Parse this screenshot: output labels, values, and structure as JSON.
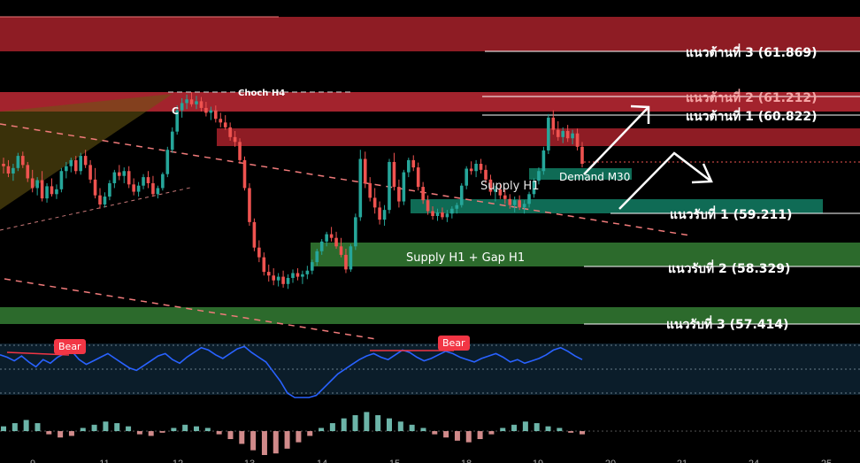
{
  "colors": {
    "background": "#000000",
    "resistance_zone": "#8e1c24",
    "supply_h1_zone": "#c23a3e",
    "demand_zone": "#0f6b55",
    "support_zone": "#2c6a2c",
    "bull_candle": "#26a69a",
    "bear_candle": "#ef5350",
    "rsi_line": "#2962ff",
    "bear_badge": "#f23645",
    "trend_line": "#f07a7a"
  },
  "annotations": {
    "choch": "Choch H4",
    "c_mark": "C",
    "supply_h1": "Supply H1",
    "demand_m30": "Demand M30",
    "supply_gap": "Supply H1 + Gap H1",
    "bear_1": "Bear",
    "bear_2": "Bear"
  },
  "chart_data": {
    "type": "candlestick",
    "levels": [
      {
        "name": "แนวต้านที่ 3",
        "value": 61.869,
        "label": "แนวต้านที่ 3 (61.869)"
      },
      {
        "name": "แนวต้านที่ 2",
        "value": 61.212,
        "label": "แนวต้านที่ 2 (61.212)"
      },
      {
        "name": "แนวต้านที่ 1",
        "value": 60.822,
        "label": "แนวต้านที่ 1 (60.822)"
      },
      {
        "name": "แนวรับที่ 1",
        "value": 59.211,
        "label": "แนวรับที่ 1 (59.211)"
      },
      {
        "name": "แนวรับที่ 2",
        "value": 58.329,
        "label": "แนวรับที่ 2 (58.329)"
      },
      {
        "name": "แนวรับที่ 3",
        "value": 57.414,
        "label": "แนวรับที่ 3 (57.414)"
      }
    ],
    "x_ticks": [
      "9",
      "11",
      "12",
      "13",
      "14",
      "15",
      "18",
      "19",
      "20",
      "21",
      "24",
      "25"
    ],
    "candles": [
      [
        60.02,
        60.12,
        59.86,
        59.98
      ],
      [
        59.98,
        60.08,
        59.8,
        59.86
      ],
      [
        59.86,
        60.02,
        59.74,
        59.95
      ],
      [
        59.95,
        60.2,
        59.9,
        60.15
      ],
      [
        60.15,
        60.22,
        59.95,
        60.0
      ],
      [
        60.0,
        60.05,
        59.72,
        59.78
      ],
      [
        59.78,
        59.92,
        59.55,
        59.62
      ],
      [
        59.62,
        59.8,
        59.5,
        59.75
      ],
      [
        59.75,
        59.9,
        59.4,
        59.45
      ],
      [
        59.45,
        59.7,
        59.38,
        59.65
      ],
      [
        59.65,
        59.78,
        59.48,
        59.52
      ],
      [
        59.52,
        59.68,
        59.44,
        59.6
      ],
      [
        59.6,
        59.95,
        59.55,
        59.9
      ],
      [
        59.9,
        60.05,
        59.78,
        59.98
      ],
      [
        59.98,
        60.12,
        59.88,
        60.08
      ],
      [
        60.08,
        60.15,
        59.85,
        59.9
      ],
      [
        59.9,
        60.2,
        59.84,
        60.15
      ],
      [
        60.15,
        60.25,
        59.95,
        60.0
      ],
      [
        60.0,
        60.08,
        59.7,
        59.76
      ],
      [
        59.76,
        59.95,
        59.45,
        59.5
      ],
      [
        59.5,
        59.62,
        59.28,
        59.35
      ],
      [
        59.35,
        59.55,
        59.3,
        59.48
      ],
      [
        59.48,
        59.75,
        59.42,
        59.7
      ],
      [
        59.7,
        59.92,
        59.62,
        59.88
      ],
      [
        59.88,
        60.0,
        59.75,
        59.82
      ],
      [
        59.82,
        59.96,
        59.7,
        59.9
      ],
      [
        59.9,
        59.98,
        59.62,
        59.68
      ],
      [
        59.68,
        59.78,
        59.5,
        59.56
      ],
      [
        59.56,
        59.72,
        59.48,
        59.66
      ],
      [
        59.66,
        59.85,
        59.6,
        59.8
      ],
      [
        59.8,
        59.9,
        59.62,
        59.7
      ],
      [
        59.7,
        59.82,
        59.48,
        59.52
      ],
      [
        59.52,
        59.66,
        59.45,
        59.62
      ],
      [
        59.62,
        59.88,
        59.58,
        59.85
      ],
      [
        59.85,
        60.3,
        59.8,
        60.25
      ],
      [
        60.25,
        60.62,
        60.2,
        60.55
      ],
      [
        60.55,
        60.98,
        60.5,
        60.9
      ],
      [
        60.9,
        61.1,
        60.78,
        61.02
      ],
      [
        61.02,
        61.16,
        60.92,
        61.08
      ],
      [
        61.08,
        61.2,
        60.96,
        61.0
      ],
      [
        61.0,
        61.14,
        60.92,
        61.05
      ],
      [
        61.05,
        61.12,
        60.88,
        60.94
      ],
      [
        60.94,
        61.04,
        60.8,
        60.86
      ],
      [
        60.86,
        60.96,
        60.74,
        60.9
      ],
      [
        60.9,
        60.98,
        60.7,
        60.76
      ],
      [
        60.76,
        60.86,
        60.62,
        60.7
      ],
      [
        60.7,
        60.82,
        60.58,
        60.62
      ],
      [
        60.62,
        60.7,
        60.4,
        60.46
      ],
      [
        60.46,
        60.56,
        60.3,
        60.38
      ],
      [
        60.38,
        60.44,
        60.02,
        60.08
      ],
      [
        60.08,
        60.14,
        59.58,
        59.62
      ],
      [
        59.62,
        59.7,
        59.0,
        59.06
      ],
      [
        59.06,
        59.12,
        58.58,
        58.64
      ],
      [
        58.64,
        58.76,
        58.4,
        58.48
      ],
      [
        58.48,
        58.56,
        58.18,
        58.24
      ],
      [
        58.24,
        58.36,
        58.08,
        58.18
      ],
      [
        58.18,
        58.3,
        58.02,
        58.1
      ],
      [
        58.1,
        58.22,
        58.0,
        58.16
      ],
      [
        58.16,
        58.26,
        57.98,
        58.04
      ],
      [
        58.04,
        58.2,
        57.96,
        58.14
      ],
      [
        58.14,
        58.28,
        58.06,
        58.22
      ],
      [
        58.22,
        58.3,
        58.1,
        58.16
      ],
      [
        58.16,
        58.26,
        58.04,
        58.2
      ],
      [
        58.2,
        58.34,
        58.12,
        58.26
      ],
      [
        58.26,
        58.44,
        58.2,
        58.4
      ],
      [
        58.4,
        58.62,
        58.34,
        58.58
      ],
      [
        58.58,
        58.78,
        58.52,
        58.74
      ],
      [
        58.74,
        58.9,
        58.66,
        58.86
      ],
      [
        58.86,
        58.98,
        58.74,
        58.8
      ],
      [
        58.8,
        58.9,
        58.62,
        58.66
      ],
      [
        58.66,
        58.8,
        58.48,
        58.52
      ],
      [
        58.52,
        58.62,
        58.22,
        58.28
      ],
      [
        58.28,
        58.7,
        58.24,
        58.66
      ],
      [
        58.66,
        59.2,
        58.6,
        59.14
      ],
      [
        59.14,
        60.25,
        59.08,
        60.1
      ],
      [
        60.1,
        60.22,
        59.62,
        59.7
      ],
      [
        59.7,
        59.8,
        59.4,
        59.46
      ],
      [
        59.46,
        59.62,
        59.2,
        59.3
      ],
      [
        59.3,
        59.4,
        59.02,
        59.1
      ],
      [
        59.1,
        59.34,
        59.0,
        59.26
      ],
      [
        59.26,
        60.1,
        59.2,
        60.05
      ],
      [
        60.05,
        60.2,
        59.58,
        59.64
      ],
      [
        59.64,
        59.76,
        59.3,
        59.4
      ],
      [
        59.4,
        59.92,
        59.34,
        59.88
      ],
      [
        59.88,
        60.12,
        59.8,
        60.08
      ],
      [
        60.08,
        60.16,
        59.9,
        59.96
      ],
      [
        59.96,
        60.04,
        59.58,
        59.64
      ],
      [
        59.64,
        59.72,
        59.36,
        59.42
      ],
      [
        59.42,
        59.5,
        59.18,
        59.24
      ],
      [
        59.24,
        59.32,
        59.1,
        59.16
      ],
      [
        59.16,
        59.28,
        59.08,
        59.22
      ],
      [
        59.22,
        59.3,
        59.1,
        59.14
      ],
      [
        59.14,
        59.26,
        59.06,
        59.2
      ],
      [
        59.2,
        59.32,
        59.12,
        59.28
      ],
      [
        59.28,
        59.38,
        59.2,
        59.34
      ],
      [
        59.34,
        59.7,
        59.3,
        59.66
      ],
      [
        59.66,
        59.98,
        59.6,
        59.94
      ],
      [
        59.94,
        60.06,
        59.84,
        59.9
      ],
      [
        59.9,
        60.08,
        59.8,
        60.02
      ],
      [
        60.02,
        60.1,
        59.86,
        59.92
      ],
      [
        59.92,
        60.0,
        59.7,
        59.76
      ],
      [
        59.76,
        59.84,
        59.5,
        59.56
      ],
      [
        59.56,
        59.66,
        59.4,
        59.6
      ],
      [
        59.6,
        59.7,
        59.44,
        59.5
      ],
      [
        59.5,
        59.6,
        59.36,
        59.44
      ],
      [
        59.44,
        59.52,
        59.28,
        59.34
      ],
      [
        59.34,
        59.48,
        59.22,
        59.42
      ],
      [
        59.42,
        59.5,
        59.26,
        59.3
      ],
      [
        59.3,
        59.42,
        59.2,
        59.36
      ],
      [
        59.36,
        59.56,
        59.3,
        59.52
      ],
      [
        59.52,
        59.78,
        59.46,
        59.74
      ],
      [
        59.74,
        59.96,
        59.68,
        59.9
      ],
      [
        59.9,
        60.3,
        59.84,
        60.24
      ],
      [
        60.24,
        60.84,
        60.18,
        60.78
      ],
      [
        60.78,
        60.9,
        60.5,
        60.58
      ],
      [
        60.58,
        60.72,
        60.4,
        60.46
      ],
      [
        60.46,
        60.62,
        60.36,
        60.56
      ],
      [
        60.56,
        60.66,
        60.38,
        60.44
      ],
      [
        60.44,
        60.58,
        60.34,
        60.52
      ],
      [
        60.52,
        60.6,
        60.24,
        60.3
      ],
      [
        60.3,
        60.38,
        59.96,
        60.02
      ]
    ],
    "rsi": [
      62,
      60,
      57,
      61,
      56,
      52,
      58,
      55,
      60,
      63,
      65,
      58,
      54,
      57,
      60,
      63,
      59,
      55,
      51,
      49,
      53,
      57,
      61,
      63,
      58,
      55,
      60,
      64,
      68,
      66,
      62,
      59,
      63,
      67,
      69,
      64,
      60,
      56,
      48,
      40,
      30,
      22,
      18,
      22,
      28,
      34,
      40,
      46,
      50,
      54,
      58,
      61,
      63,
      60,
      58,
      62,
      66,
      64,
      60,
      57,
      59,
      62,
      65,
      63,
      60,
      58,
      56,
      59,
      61,
      63,
      60,
      56,
      58,
      55,
      57,
      59,
      62,
      66,
      68,
      65,
      61,
      58
    ],
    "histogram": [
      3,
      5,
      7,
      5,
      -2,
      -4,
      -3,
      2,
      4,
      6,
      5,
      3,
      -2,
      -3,
      -1,
      2,
      4,
      3,
      2,
      -2,
      -5,
      -8,
      -12,
      -15,
      -14,
      -11,
      -7,
      -3,
      2,
      5,
      8,
      10,
      12,
      10,
      8,
      6,
      4,
      2,
      -2,
      -4,
      -6,
      -7,
      -5,
      -2,
      2,
      4,
      6,
      5,
      3,
      2,
      -1,
      -2
    ]
  }
}
